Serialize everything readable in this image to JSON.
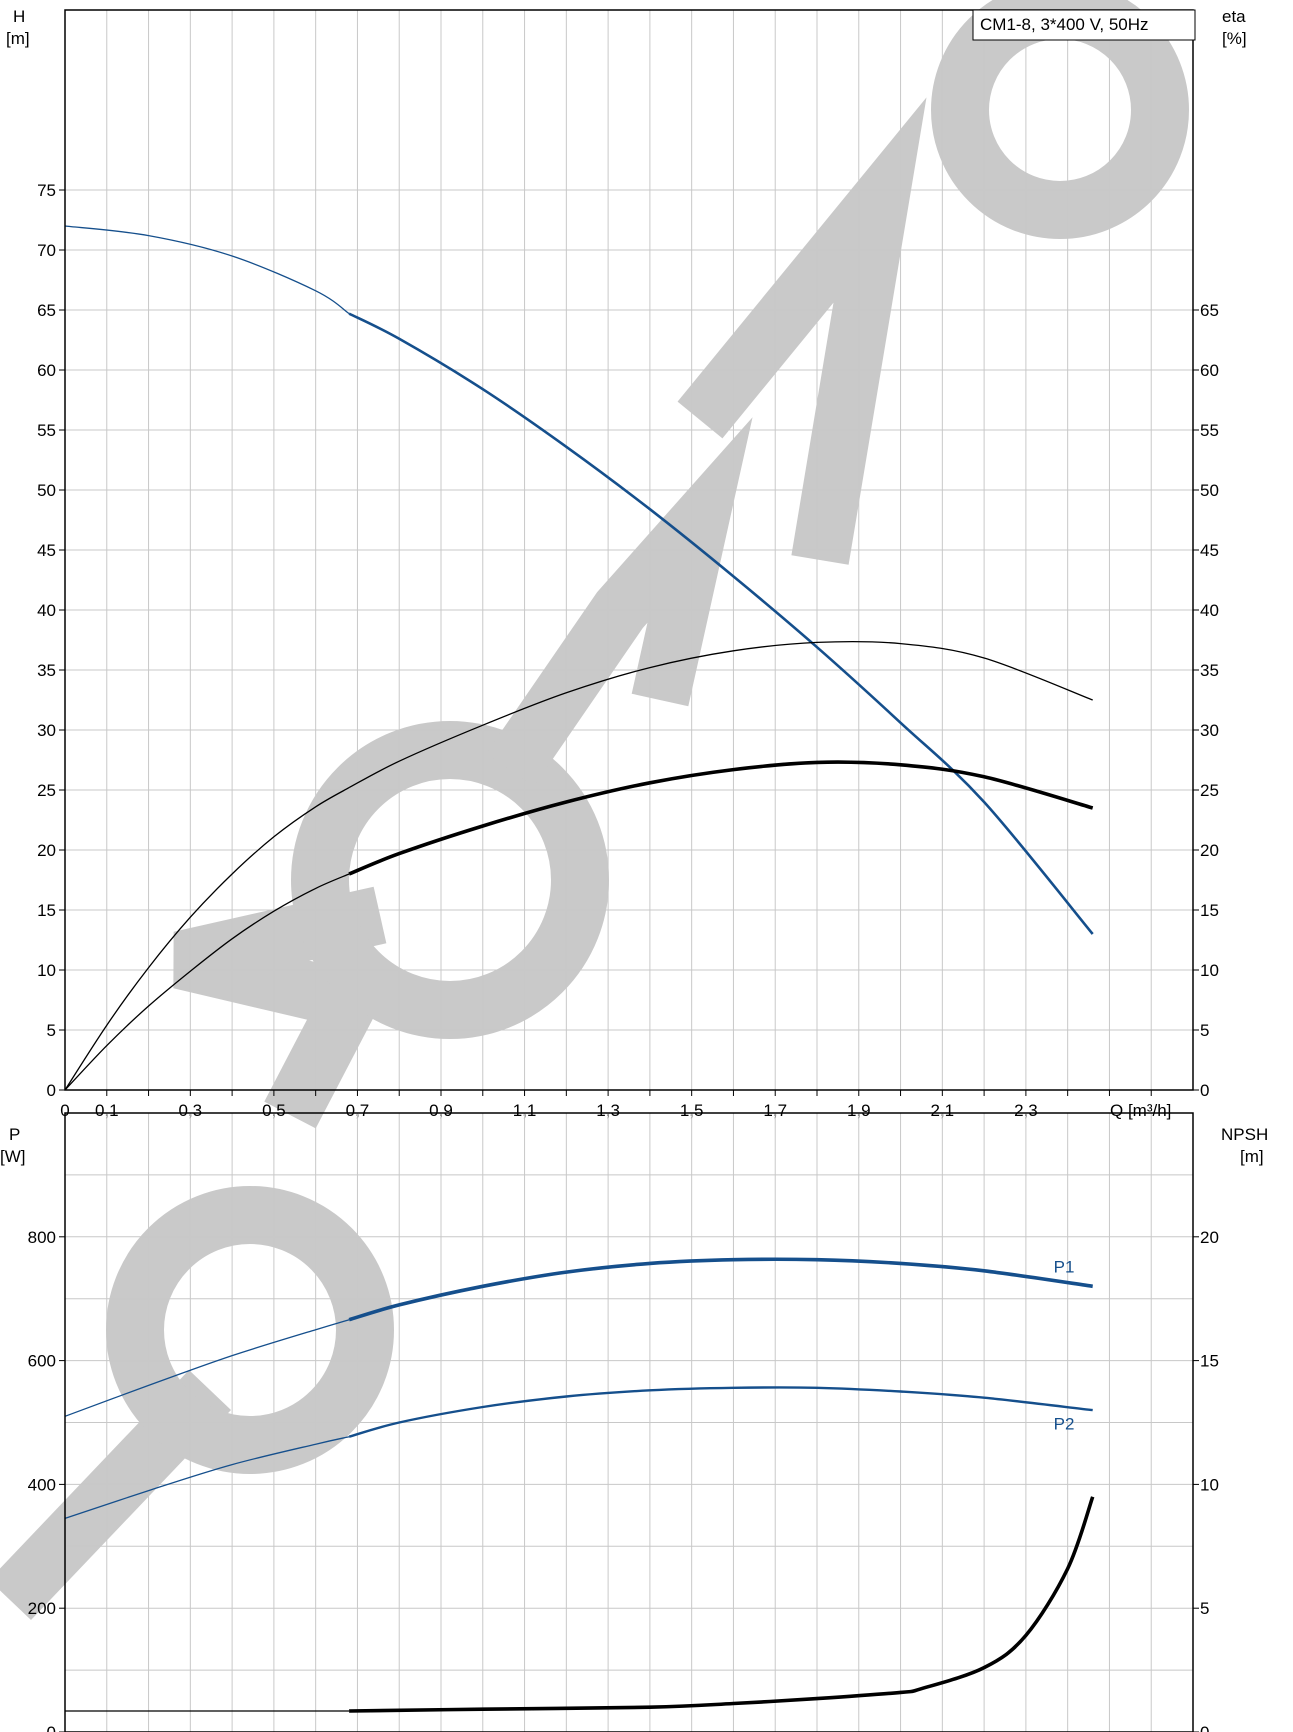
{
  "chart_data": [
    {
      "type": "line",
      "title": "CM1-8, 3*400 V, 50Hz",
      "xlabel": "Q [m³/h]",
      "ylabel": "H\n[m]",
      "ylabel_right": "eta\n[%]",
      "xlim": [
        0,
        2.7
      ],
      "ylim": [
        0,
        90
      ],
      "ylim_right": [
        0,
        90
      ],
      "x_ticks": [
        0,
        0.1,
        0.3,
        0.5,
        0.7,
        0.9,
        1.1,
        1.3,
        1.5,
        1.7,
        1.9,
        2.1,
        2.3
      ],
      "x_tick_labels": [
        "0",
        "0,1",
        "0,3",
        "0,5",
        "0,7",
        "0,9",
        "1,1",
        "1,3",
        "1,5",
        "1,7",
        "1,9",
        "2,1",
        "2,3"
      ],
      "y_ticks": [
        0,
        5,
        10,
        15,
        20,
        25,
        30,
        35,
        40,
        45,
        50,
        55,
        60,
        65,
        70,
        75
      ],
      "y_ticks_right": [
        0,
        5,
        10,
        15,
        20,
        25,
        30,
        35,
        40,
        45,
        50,
        55,
        60,
        65
      ],
      "grid": true,
      "operating_range": [
        0.68,
        2.46
      ],
      "series": [
        {
          "name": "",
          "color": "#154f8c",
          "axis": "left",
          "x": [
            0,
            0.2,
            0.4,
            0.6,
            0.68,
            0.8,
            1.0,
            1.2,
            1.4,
            1.6,
            1.8,
            2.0,
            2.2,
            2.46
          ],
          "y": [
            72,
            71.2,
            69.5,
            66.6,
            64.7,
            62.6,
            58.4,
            53.6,
            48.4,
            42.8,
            36.9,
            30.6,
            24.0,
            13.0
          ]
        },
        {
          "name": "",
          "color": "#000000",
          "axis": "right",
          "x": [
            0,
            0.1,
            0.2,
            0.3,
            0.4,
            0.5,
            0.6,
            0.68,
            0.8,
            1.0,
            1.2,
            1.4,
            1.6,
            1.8,
            2.0,
            2.2,
            2.46
          ],
          "y": [
            0,
            5.4,
            10.2,
            14.4,
            18.0,
            21.1,
            23.6,
            25.2,
            27.4,
            30.4,
            33.1,
            35.2,
            36.6,
            37.3,
            37.2,
            36.0,
            32.5
          ]
        },
        {
          "name": "",
          "color": "#000000",
          "axis": "right",
          "x": [
            0,
            0.1,
            0.2,
            0.3,
            0.4,
            0.5,
            0.6,
            0.68,
            0.8,
            1.0,
            1.2,
            1.4,
            1.6,
            1.8,
            2.0,
            2.2,
            2.46
          ],
          "y": [
            0,
            3.7,
            7.0,
            9.9,
            12.6,
            14.9,
            16.8,
            18.0,
            19.7,
            22.0,
            24.0,
            25.6,
            26.7,
            27.3,
            27.1,
            26.1,
            23.5
          ]
        }
      ]
    },
    {
      "type": "line",
      "xlabel": "",
      "ylabel": "P\n[W]",
      "ylabel_right": "NPSH\n[m]",
      "xlim": [
        0,
        2.7
      ],
      "ylim": [
        0,
        1000
      ],
      "ylim_right": [
        0,
        25
      ],
      "y_ticks": [
        0,
        200,
        400,
        600,
        800
      ],
      "y_ticks_right": [
        0,
        5,
        10,
        15,
        20
      ],
      "grid": true,
      "operating_range": [
        0.68,
        2.46
      ],
      "series": [
        {
          "name": "P1",
          "color": "#154f8c",
          "axis": "left",
          "x": [
            0,
            0.2,
            0.4,
            0.6,
            0.68,
            0.8,
            1.0,
            1.2,
            1.4,
            1.6,
            1.8,
            2.0,
            2.2,
            2.46
          ],
          "y": [
            510,
            560,
            608,
            650,
            666,
            690,
            720,
            743,
            757,
            763,
            763,
            757,
            745,
            720
          ]
        },
        {
          "name": "P2",
          "color": "#154f8c",
          "axis": "left",
          "x": [
            0,
            0.2,
            0.4,
            0.6,
            0.68,
            0.8,
            1.0,
            1.2,
            1.4,
            1.6,
            1.8,
            2.0,
            2.2,
            2.46
          ],
          "y": [
            345,
            390,
            432,
            465,
            477,
            500,
            525,
            542,
            552,
            556,
            556,
            550,
            540,
            520
          ]
        },
        {
          "name": "",
          "color": "#000000",
          "axis": "right",
          "x": [
            0,
            0.68,
            1.0,
            1.4,
            1.6,
            1.8,
            2.0,
            2.05,
            2.2,
            2.3,
            2.4,
            2.46
          ],
          "y": [
            0.85,
            0.85,
            0.92,
            1.0,
            1.15,
            1.35,
            1.6,
            1.75,
            2.6,
            3.9,
            6.6,
            9.5
          ]
        }
      ]
    }
  ],
  "labels": {
    "chart_title": "CM1-8, 3*400 V, 50Hz",
    "h_axis": [
      "H",
      "[m]"
    ],
    "eta_axis": [
      "eta",
      "[%]"
    ],
    "q_axis": "Q [m³/h]",
    "p_axis": [
      "P",
      "[W]"
    ],
    "npsh_axis": [
      "NPSH",
      "[m]"
    ],
    "watermark": "MOTORMO"
  },
  "colors": {
    "blue": "#154f8c",
    "black": "#000000",
    "grid": "#c8c8c8",
    "watermark": "#c9c9c9"
  }
}
